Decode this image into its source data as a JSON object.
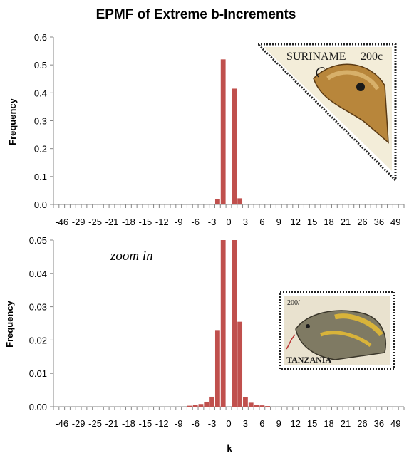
{
  "title": "EPMF of Extreme b-Increments",
  "colors": {
    "bar": "#c0504d",
    "axis": "#868686",
    "text": "#000000"
  },
  "x_tick_labels": [
    "-46",
    "-29",
    "-25",
    "-21",
    "-18",
    "-15",
    "-12",
    "-9",
    "-6",
    "-3",
    "0",
    "3",
    "6",
    "9",
    "12",
    "15",
    "18",
    "21",
    "26",
    "36",
    "49"
  ],
  "chart_data": [
    {
      "type": "bar",
      "ylabel": "Frequency",
      "xlabel": "",
      "ylim": [
        0,
        0.6
      ],
      "yticks": [
        "0.0",
        "0.1",
        "0.2",
        "0.3",
        "0.4",
        "0.5",
        "0.6"
      ],
      "categories": [
        "-46",
        "-29",
        "-25",
        "-21",
        "-18",
        "-15",
        "-12",
        "-9",
        "-6",
        "-3",
        "0",
        "3",
        "6",
        "9",
        "12",
        "15",
        "18",
        "21",
        "26",
        "36",
        "49"
      ],
      "bars": [
        {
          "k": -3,
          "value": 0.0
        },
        {
          "k": -2,
          "value": 0.02
        },
        {
          "k": -1,
          "value": 0.52
        },
        {
          "k": 0,
          "value": 0.0
        },
        {
          "k": 1,
          "value": 0.415
        },
        {
          "k": 2,
          "value": 0.022
        },
        {
          "k": 3,
          "value": 0.002
        }
      ],
      "stamp": {
        "country": "SURINAME",
        "value": "200c"
      }
    },
    {
      "type": "bar",
      "ylabel": "Frequency",
      "xlabel": "k",
      "ylim": [
        0,
        0.05
      ],
      "yticks": [
        "0.00",
        "0.01",
        "0.02",
        "0.03",
        "0.04",
        "0.05"
      ],
      "annotation": "zoom in",
      "categories": [
        "-46",
        "-29",
        "-25",
        "-21",
        "-18",
        "-15",
        "-12",
        "-9",
        "-6",
        "-3",
        "0",
        "3",
        "6",
        "9",
        "12",
        "15",
        "18",
        "21",
        "26",
        "36",
        "49"
      ],
      "bars": [
        {
          "k": -7,
          "value": 0.0003
        },
        {
          "k": -6,
          "value": 0.0005
        },
        {
          "k": -5,
          "value": 0.0008
        },
        {
          "k": -4,
          "value": 0.0015
        },
        {
          "k": -3,
          "value": 0.003
        },
        {
          "k": -2,
          "value": 0.023
        },
        {
          "k": -1,
          "value": 0.05
        },
        {
          "k": 0,
          "value": 0.0
        },
        {
          "k": 1,
          "value": 0.05
        },
        {
          "k": 2,
          "value": 0.0255
        },
        {
          "k": 3,
          "value": 0.0028
        },
        {
          "k": 4,
          "value": 0.0012
        },
        {
          "k": 5,
          "value": 0.0006
        },
        {
          "k": 6,
          "value": 0.0004
        },
        {
          "k": 7,
          "value": 0.0002
        }
      ],
      "stamp": {
        "country": "TANZANIA",
        "value": "200/-"
      }
    }
  ]
}
